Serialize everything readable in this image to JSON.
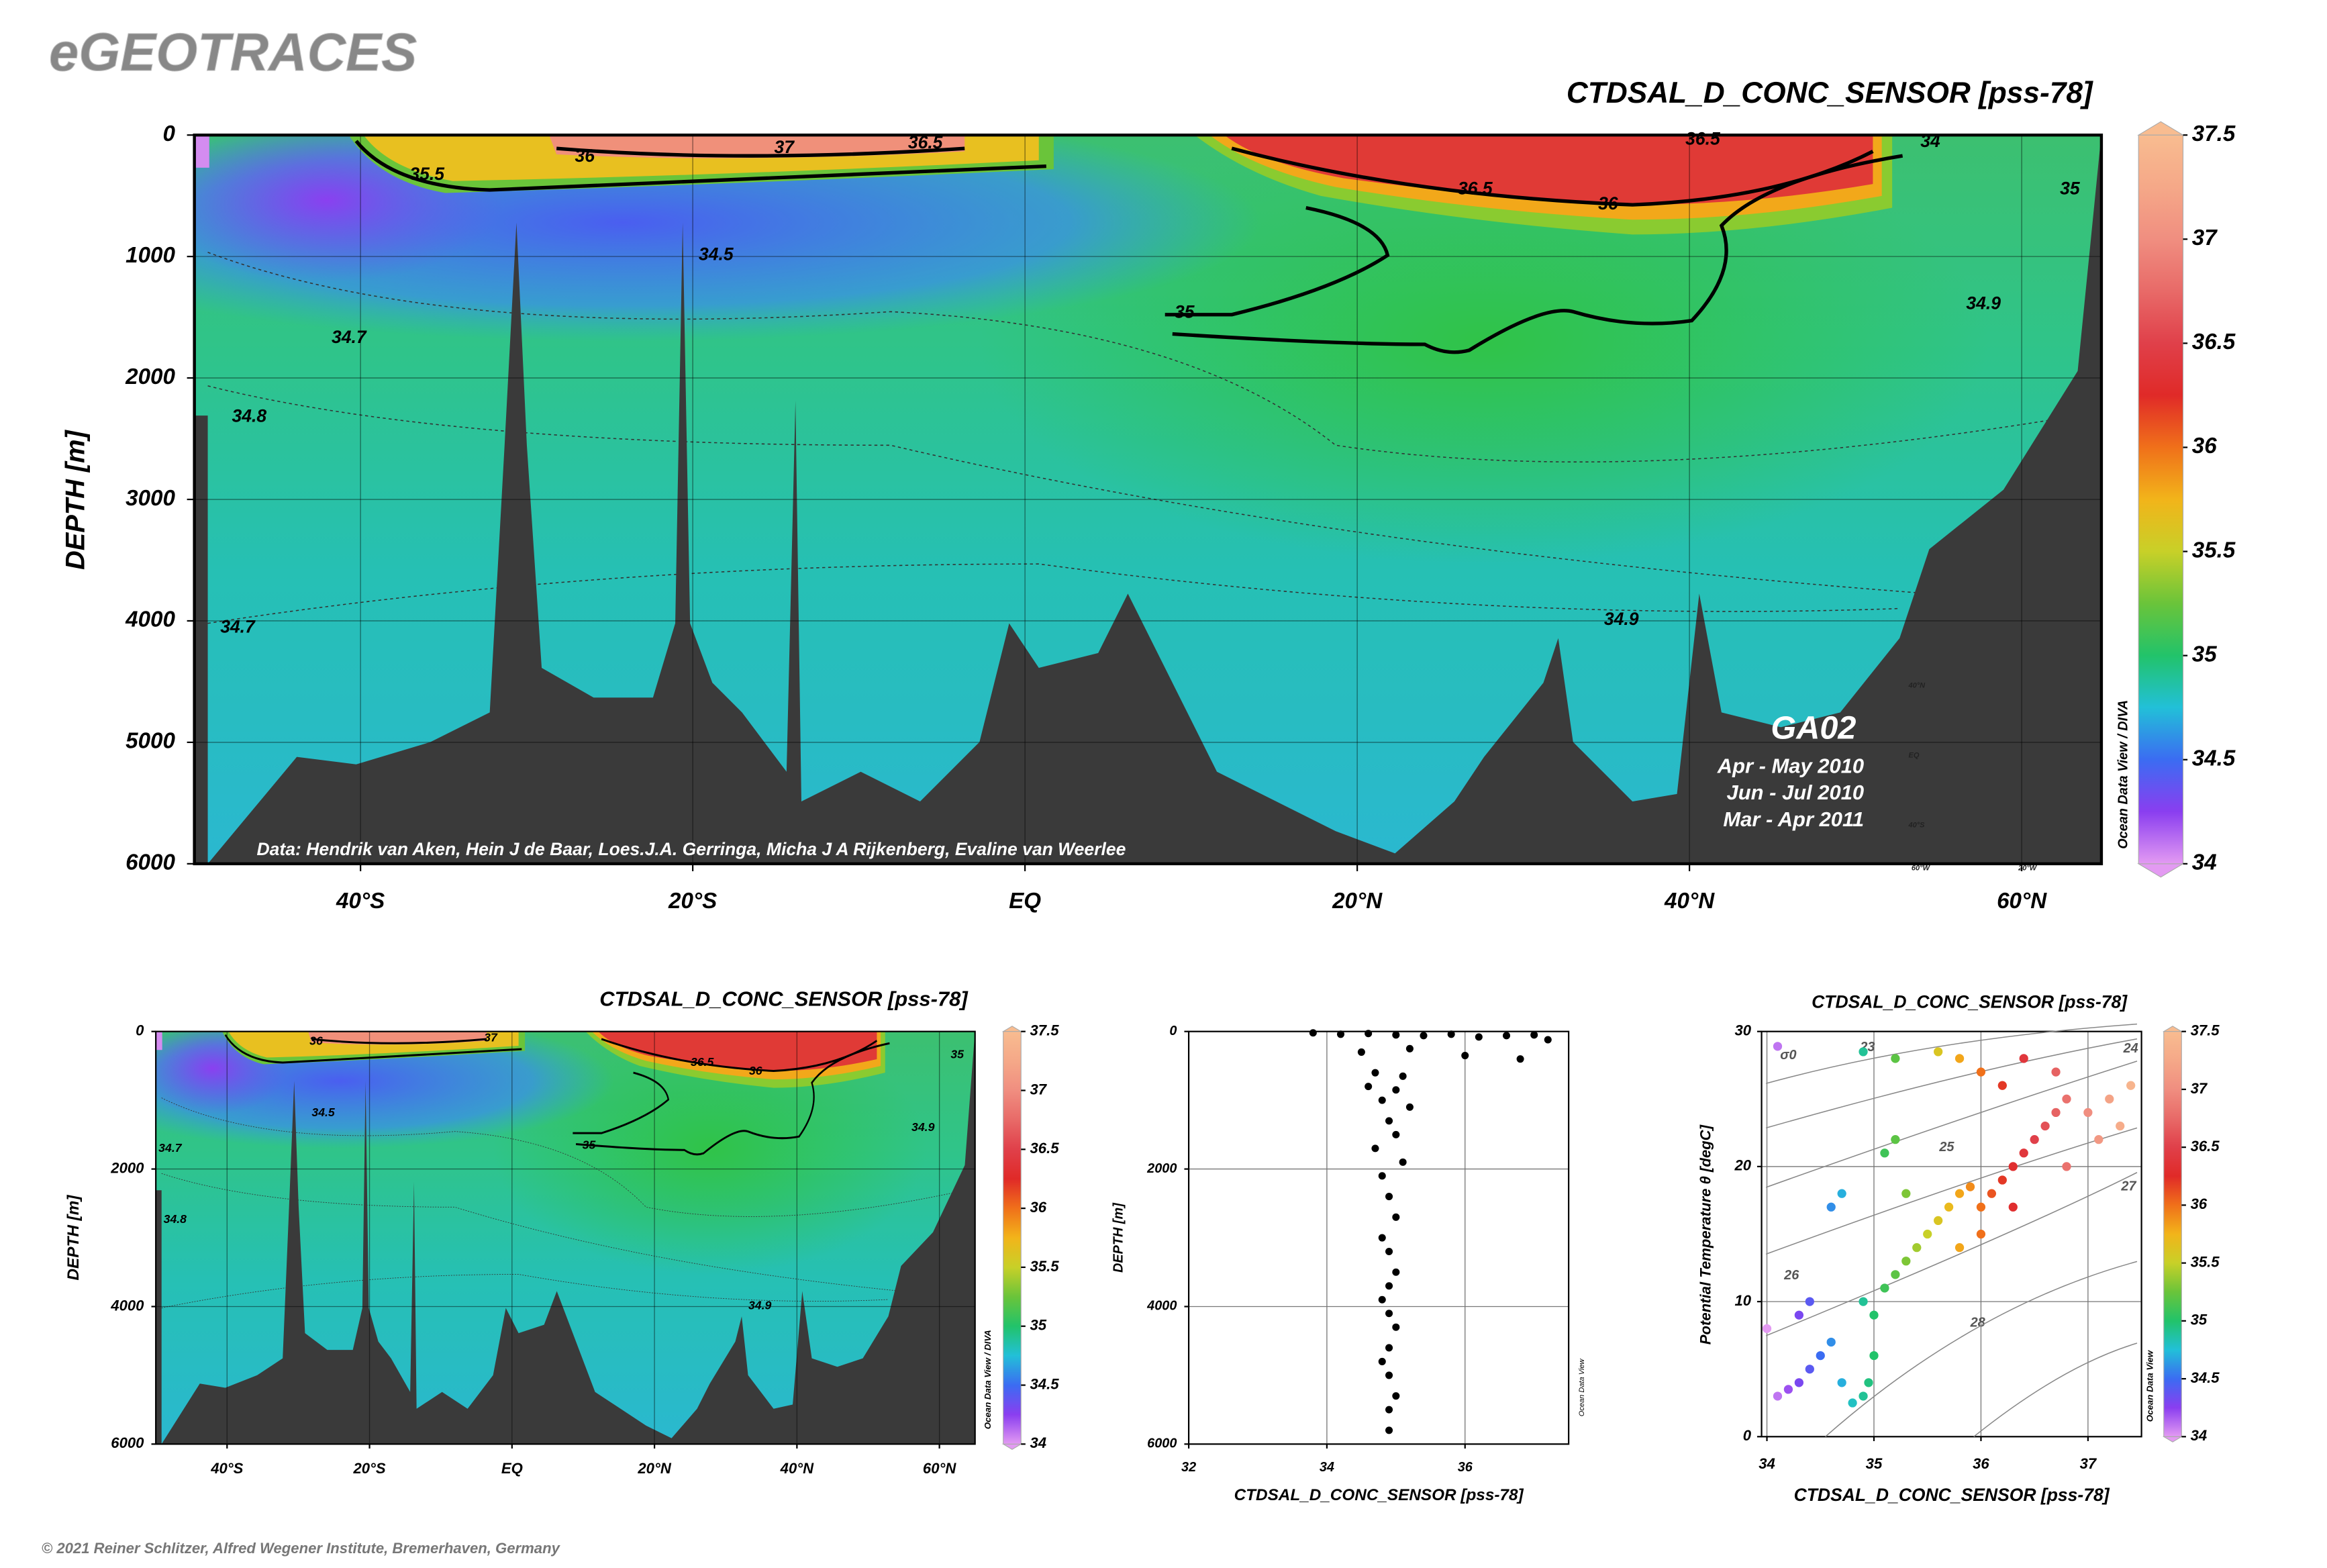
{
  "header": {
    "title": "eGEOTRACES"
  },
  "footer": {
    "text": "© 2021 Reiner Schlitzer, Alfred Wegener Institute, Bremerhaven, Germany"
  },
  "chart_data": [
    {
      "type": "section",
      "title": "CTDSAL_D_CONC_SENSOR [pss-78]",
      "ylabel": "DEPTH [m]",
      "xlim": [
        -50,
        64.8
      ],
      "xticks": [
        {
          "value": -40,
          "label": "40°S"
        },
        {
          "value": -20,
          "label": "20°S"
        },
        {
          "value": 0,
          "label": "EQ"
        },
        {
          "value": 20,
          "label": "20°N"
        },
        {
          "value": 40,
          "label": "40°N"
        },
        {
          "value": 60,
          "label": "60°N"
        }
      ],
      "ylim": [
        6000,
        0
      ],
      "yticks": [
        0,
        1000,
        2000,
        3000,
        4000,
        5000,
        6000
      ],
      "grid": true,
      "colorbar": {
        "lim": [
          34,
          37.5
        ],
        "ticks": [
          34,
          34.5,
          35,
          35.5,
          36,
          36.5,
          37,
          37.5
        ],
        "label": "Ocean Data View / DIVA",
        "colors": [
          "#e39af2",
          "#8a3ef0",
          "#3b6cf2",
          "#22c0d8",
          "#22c36a",
          "#6ac43a",
          "#c8d028",
          "#f2b41a",
          "#f0701a",
          "#e02a28",
          "#e0404a",
          "#e86a68",
          "#f08e80",
          "#f5a888",
          "#f8bc90"
        ]
      },
      "contour_labels": [
        {
          "text": "34.5",
          "x": -18.6,
          "y": 990
        },
        {
          "text": "35.5",
          "x": -36,
          "y": 330
        },
        {
          "text": "36",
          "x": -26.5,
          "y": 180
        },
        {
          "text": "37",
          "x": -14.5,
          "y": 110
        },
        {
          "text": "36.5",
          "x": -6,
          "y": 70
        },
        {
          "text": "36.5",
          "x": 27.1,
          "y": 450
        },
        {
          "text": "36",
          "x": 35.1,
          "y": 575
        },
        {
          "text": "35",
          "x": 9.6,
          "y": 1466
        },
        {
          "text": "34.9",
          "x": 57.7,
          "y": 1393
        },
        {
          "text": "34.9",
          "x": 35.9,
          "y": 3996
        },
        {
          "text": "34.7",
          "x": -40.7,
          "y": 1674
        },
        {
          "text": "34.8",
          "x": -46.7,
          "y": 2322
        },
        {
          "text": "34.7",
          "x": -47.4,
          "y": 4057
        },
        {
          "text": "36.5",
          "x": 40.8,
          "y": 40
        },
        {
          "text": "34",
          "x": 54.5,
          "y": 60
        },
        {
          "text": "35",
          "x": 62.9,
          "y": 450
        }
      ],
      "credit": "Data: Hendrik van Aken, Hein J de Baar, Loes.J.A. Gerringa, Micha J A Rijkenberg, Evaline van Weerlee",
      "inset": {
        "title": "GA02",
        "lines": [
          "Apr - May 2010",
          "Jun - Jul 2010",
          "Mar - Apr 2011"
        ],
        "map_labels": [
          "40°N",
          "EQ",
          "40°S",
          "60°W",
          "20°W"
        ]
      }
    },
    {
      "type": "section",
      "title": "CTDSAL_D_CONC_SENSOR [pss-78]",
      "ylabel": "DEPTH [m]",
      "xlim": [
        -50,
        65
      ],
      "xticks": [
        {
          "value": -40,
          "label": "40°S"
        },
        {
          "value": -20,
          "label": "20°S"
        },
        {
          "value": 0,
          "label": "EQ"
        },
        {
          "value": 20,
          "label": "20°N"
        },
        {
          "value": 40,
          "label": "40°N"
        },
        {
          "value": 60,
          "label": "60°N"
        }
      ],
      "ylim": [
        6000,
        0
      ],
      "yticks": [
        0,
        2000,
        4000,
        6000
      ],
      "grid": true,
      "colorbar": {
        "lim": [
          34,
          37.5
        ],
        "ticks": [
          34,
          34.5,
          35,
          35.5,
          36,
          36.5,
          37,
          37.5
        ],
        "label": "Ocean Data View / DIVA",
        "colors": [
          "#e39af2",
          "#8a3ef0",
          "#3b6cf2",
          "#22c0d8",
          "#22c36a",
          "#6ac43a",
          "#c8d028",
          "#f2b41a",
          "#f0701a",
          "#e02a28",
          "#e0404a",
          "#e86a68",
          "#f08e80",
          "#f5a888",
          "#f8bc90"
        ]
      },
      "contour_labels": [
        {
          "text": "34.5",
          "x": -26.5,
          "y": 1187
        },
        {
          "text": "36",
          "x": -27.5,
          "y": 150
        },
        {
          "text": "37",
          "x": -3,
          "y": 100
        },
        {
          "text": "36.5",
          "x": 26.7,
          "y": 453
        },
        {
          "text": "36",
          "x": 34.2,
          "y": 583
        },
        {
          "text": "35",
          "x": 10.8,
          "y": 1662
        },
        {
          "text": "34.9",
          "x": 57.7,
          "y": 1403
        },
        {
          "text": "34.9",
          "x": 34.8,
          "y": 3993
        },
        {
          "text": "34.7",
          "x": -48,
          "y": 1705
        },
        {
          "text": "34.8",
          "x": -47.3,
          "y": 2741
        },
        {
          "text": "35",
          "x": 62.5,
          "y": 345
        }
      ]
    },
    {
      "type": "scatter",
      "xlabel": "CTDSAL_D_CONC_SENSOR [pss-78]",
      "ylabel": "DEPTH [m]",
      "xlim": [
        32,
        37.5
      ],
      "xticks": [
        32,
        34,
        36
      ],
      "ylim": [
        6000,
        0
      ],
      "yticks": [
        0,
        2000,
        4000,
        6000
      ],
      "grid": true,
      "color": "#000000",
      "watermark": "Ocean Data View",
      "x": [
        33.8,
        34.2,
        34.6,
        35.0,
        35.4,
        35.8,
        36.2,
        36.6,
        37.0,
        37.2,
        34.5,
        35.2,
        36.0,
        36.8,
        34.7,
        35.1,
        34.6,
        35.0,
        34.8,
        35.2,
        34.9,
        35.0,
        34.7,
        35.1,
        34.8,
        34.9,
        35.0,
        34.8,
        34.9,
        35.0,
        34.9,
        34.8,
        34.9,
        35.0,
        34.9,
        34.8,
        34.9,
        35.0,
        34.9,
        34.9
      ],
      "y": [
        20,
        40,
        30,
        50,
        60,
        40,
        80,
        60,
        50,
        120,
        300,
        250,
        350,
        400,
        600,
        650,
        800,
        850,
        1000,
        1100,
        1300,
        1500,
        1700,
        1900,
        2100,
        2400,
        2700,
        3000,
        3200,
        3500,
        3700,
        3900,
        4100,
        4300,
        4600,
        4800,
        5000,
        5300,
        5500,
        5800
      ]
    },
    {
      "type": "scatter",
      "title": "CTDSAL_D_CONC_SENSOR [pss-78]",
      "xlabel": "CTDSAL_D_CONC_SENSOR [pss-78]",
      "ylabel": "Potential Temperature θ [degC]",
      "xlim": [
        33.95,
        37.5
      ],
      "xticks": [
        34,
        35,
        36,
        37
      ],
      "ylim": [
        0,
        30
      ],
      "yticks": [
        0,
        10,
        20,
        30
      ],
      "grid": true,
      "color_by_x": true,
      "colorbar": {
        "lim": [
          34,
          37.5
        ],
        "ticks": [
          34,
          34.5,
          35,
          35.5,
          36,
          36.5,
          37,
          37.5
        ],
        "label": "Ocean Data View",
        "colors": [
          "#e39af2",
          "#8a3ef0",
          "#3b6cf2",
          "#22c0d8",
          "#22c36a",
          "#6ac43a",
          "#c8d028",
          "#f2b41a",
          "#f0701a",
          "#e02a28",
          "#e0404a",
          "#e86a68",
          "#f08e80",
          "#f5a888",
          "#f8bc90"
        ]
      },
      "contour_labels": [
        {
          "text": "σ0",
          "x": 34.2,
          "y": 28.2
        },
        {
          "text": "23",
          "x": 34.94,
          "y": 28.8
        },
        {
          "text": "24",
          "x": 37.4,
          "y": 28.7
        },
        {
          "text": "25",
          "x": 35.68,
          "y": 21.4
        },
        {
          "text": "26",
          "x": 34.23,
          "y": 11.9
        },
        {
          "text": "27",
          "x": 37.38,
          "y": 18.5
        },
        {
          "text": "28",
          "x": 35.97,
          "y": 8.4
        }
      ],
      "x": [
        34.1,
        34.2,
        34.3,
        34.4,
        34.5,
        34.6,
        34.7,
        34.8,
        34.9,
        34.95,
        35.0,
        35.0,
        34.9,
        35.1,
        35.2,
        35.3,
        35.4,
        35.5,
        35.6,
        35.7,
        35.8,
        35.9,
        36.0,
        36.1,
        36.2,
        36.3,
        36.4,
        36.5,
        36.6,
        36.7,
        36.8,
        37.0,
        37.2,
        37.4,
        36.2,
        36.0,
        35.8,
        35.6,
        36.4,
        36.7,
        35.2,
        34.9,
        34.1,
        35.1,
        35.2,
        34.7,
        34.6,
        35.3,
        34.4,
        34.3,
        34.0,
        35.8,
        36.0,
        36.3,
        36.8,
        37.1,
        37.3
      ],
      "y": [
        3,
        3.5,
        4,
        5,
        6,
        7,
        4,
        2.5,
        3,
        4,
        6,
        9,
        10,
        11,
        12,
        13,
        14,
        15,
        16,
        17,
        18,
        18.5,
        17,
        18,
        19,
        20,
        21,
        22,
        23,
        24,
        25,
        24,
        25,
        26,
        26,
        27,
        28,
        28.5,
        28,
        27,
        28,
        28.5,
        28.9,
        21,
        22,
        18,
        17,
        18,
        10,
        9,
        8,
        14,
        15,
        17,
        20,
        22,
        23
      ]
    }
  ]
}
